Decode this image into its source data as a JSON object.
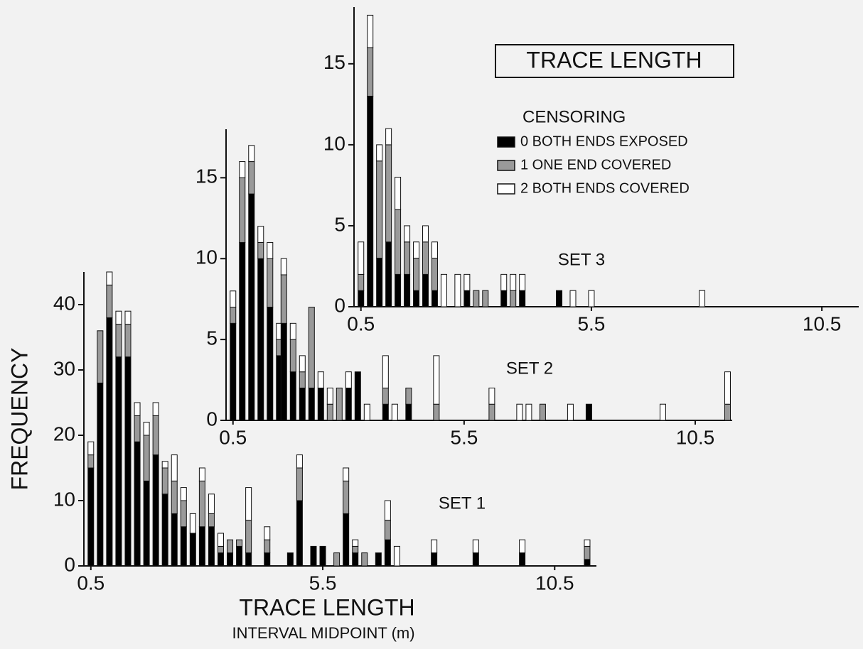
{
  "title": "TRACE LENGTH",
  "legend": {
    "title": "CENSORING",
    "items": [
      {
        "name": "0 BOTH ENDS EXPOSED",
        "color": "#000000"
      },
      {
        "name": "1 ONE END COVERED",
        "color": "#9a9a9a"
      },
      {
        "name": "2 BOTH ENDS COVERED",
        "color": "#ffffff"
      }
    ]
  },
  "chart_data": [
    {
      "type": "bar",
      "title": "SET 1",
      "xlabel": "TRACE LENGTH",
      "xlabel_sub": "INTERVAL MIDPOINT (m)",
      "ylabel": "FREQUENCY",
      "x": [
        0.5,
        0.7,
        0.9,
        1.1,
        1.3,
        1.5,
        1.7,
        1.9,
        2.1,
        2.3,
        2.5,
        2.7,
        2.9,
        3.1,
        3.3,
        3.5,
        3.7,
        3.9,
        4.3,
        4.8,
        5.0,
        5.3,
        5.5,
        5.8,
        6.0,
        6.2,
        6.4,
        6.7,
        6.9,
        7.1,
        7.9,
        8.8,
        9.8,
        11.2
      ],
      "series": [
        {
          "values": [
            15,
            28,
            38,
            32,
            32,
            19,
            13,
            17,
            11,
            8,
            6,
            5,
            6,
            6,
            2,
            2,
            3,
            2,
            2,
            2,
            10,
            3,
            3,
            0,
            8,
            2,
            0,
            2,
            4,
            0,
            2,
            2,
            2,
            1
          ]
        },
        {
          "values": [
            2,
            8,
            5,
            5,
            5,
            4,
            7,
            6,
            4,
            5,
            4,
            0,
            7,
            2,
            1,
            2,
            1,
            5,
            2,
            0,
            5,
            0,
            0,
            2,
            5,
            1,
            2,
            0,
            3,
            0,
            0,
            0,
            0,
            2
          ]
        },
        {
          "values": [
            2,
            0,
            2,
            2,
            2,
            2,
            2,
            2,
            1,
            4,
            2,
            3,
            2,
            3,
            2,
            0,
            0,
            5,
            2,
            0,
            2,
            0,
            0,
            0,
            2,
            1,
            0,
            0,
            3,
            3,
            2,
            2,
            2,
            1
          ]
        }
      ],
      "xlim": [
        0.35,
        11.4
      ],
      "ylim": [
        0,
        45
      ],
      "xticks": [
        0.5,
        5.5,
        10.5
      ],
      "yticks": [
        0,
        10,
        20,
        30,
        40
      ]
    },
    {
      "type": "bar",
      "title": "SET 2",
      "x": [
        0.5,
        0.7,
        0.9,
        1.1,
        1.3,
        1.5,
        1.6,
        1.8,
        2.0,
        2.2,
        2.4,
        2.6,
        2.8,
        3.0,
        3.2,
        3.4,
        3.8,
        4.0,
        4.3,
        4.9,
        6.1,
        6.7,
        6.9,
        7.2,
        7.8,
        8.2,
        9.8,
        11.2
      ],
      "series": [
        {
          "values": [
            6,
            11,
            14,
            10,
            7,
            4,
            6,
            3,
            2,
            2,
            2,
            0,
            0,
            2,
            3,
            0,
            1,
            0,
            1,
            0,
            0,
            0,
            0,
            0,
            0,
            1,
            0,
            0
          ]
        },
        {
          "values": [
            1,
            4,
            2,
            1,
            3,
            1,
            3,
            2,
            1,
            5,
            0,
            1,
            2,
            0,
            0,
            0,
            1,
            0,
            1,
            1,
            1,
            0,
            0,
            1,
            0,
            0,
            0,
            1
          ]
        },
        {
          "values": [
            1,
            1,
            1,
            1,
            1,
            1,
            1,
            1,
            1,
            0,
            1,
            1,
            0,
            1,
            0,
            1,
            2,
            1,
            0,
            3,
            1,
            1,
            1,
            0,
            1,
            0,
            1,
            2
          ]
        }
      ],
      "xlim": [
        0.35,
        11.3
      ],
      "ylim": [
        0,
        18
      ],
      "xticks": [
        0.5,
        5.5,
        10.5
      ],
      "yticks": [
        0,
        5,
        10,
        15
      ]
    },
    {
      "type": "bar",
      "title": "SET 3",
      "x": [
        0.5,
        0.7,
        0.9,
        1.1,
        1.3,
        1.5,
        1.7,
        1.9,
        2.1,
        2.3,
        2.6,
        2.8,
        3.0,
        3.2,
        3.6,
        3.8,
        4.0,
        4.8,
        5.1,
        5.5,
        7.9
      ],
      "series": [
        {
          "values": [
            1,
            13,
            3,
            4,
            2,
            2,
            1,
            2,
            1,
            0,
            0,
            1,
            0,
            0,
            1,
            0,
            1,
            1,
            0,
            0,
            0
          ]
        },
        {
          "values": [
            1,
            3,
            6,
            6,
            4,
            2,
            2,
            2,
            2,
            0,
            0,
            0,
            1,
            1,
            0,
            1,
            0,
            0,
            0,
            0,
            0
          ]
        },
        {
          "values": [
            2,
            2,
            1,
            1,
            2,
            1,
            1,
            1,
            1,
            2,
            2,
            1,
            0,
            0,
            1,
            1,
            1,
            0,
            1,
            1,
            1
          ]
        }
      ],
      "xlim": [
        0.35,
        11.3
      ],
      "ylim": [
        0,
        18.5
      ],
      "xticks": [
        0.5,
        5.5,
        10.5
      ],
      "yticks": [
        0,
        5,
        10,
        15
      ]
    }
  ]
}
